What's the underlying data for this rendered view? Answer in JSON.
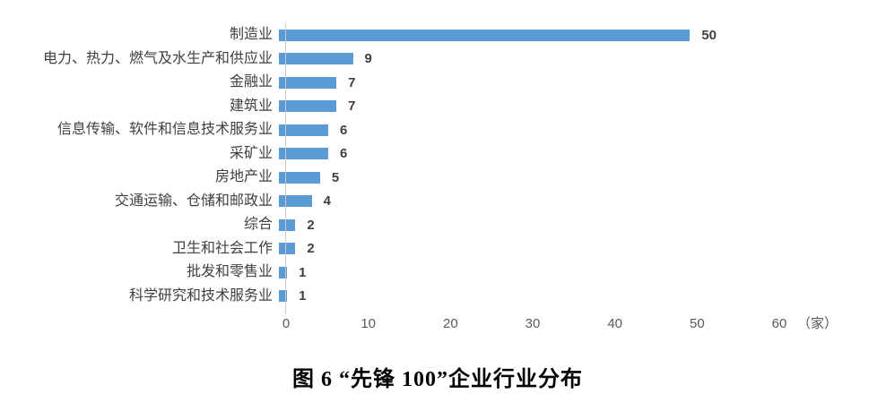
{
  "chart_data": {
    "type": "bar",
    "orientation": "horizontal",
    "title": "图 6 “先锋 100”企业行业分布",
    "categories": [
      "制造业",
      "电力、热力、燃气及水生产和供应业",
      "金融业",
      "建筑业",
      "信息传输、软件和信息技术服务业",
      "采矿业",
      "房地产业",
      "交通运输、仓储和邮政业",
      "综合",
      "卫生和社会工作",
      "批发和零售业",
      "科学研究和技术服务业"
    ],
    "values": [
      50,
      9,
      7,
      7,
      6,
      6,
      5,
      4,
      2,
      2,
      1,
      1
    ],
    "x_ticks": [
      "0",
      "10",
      "20",
      "30",
      "40",
      "50",
      "60"
    ],
    "xlim": [
      0,
      60
    ],
    "axis_unit": "（家）",
    "ylabel": "",
    "xlabel": "",
    "grid": false,
    "legend": false,
    "bar_color": "#5b9bd5",
    "axis_line_color": "#c9c9c9",
    "data_labels_shown": true
  }
}
